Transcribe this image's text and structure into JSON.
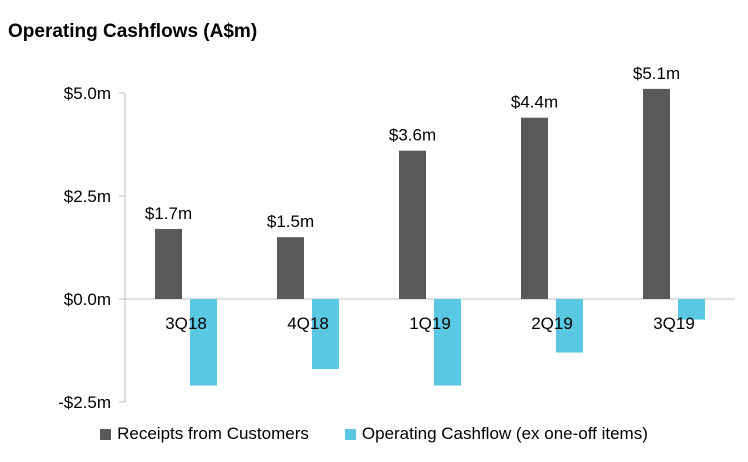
{
  "chart_data": {
    "type": "bar",
    "title": "Operating Cashflows (A$m)",
    "categories": [
      "3Q18",
      "4Q18",
      "1Q19",
      "2Q19",
      "3Q19"
    ],
    "series": [
      {
        "name": "Receipts from Customers",
        "color": "#595959",
        "values": [
          1.7,
          1.5,
          3.6,
          4.4,
          5.1
        ],
        "labels": [
          "$1.7m",
          "$1.5m",
          "$3.6m",
          "$4.4m",
          "$5.1m"
        ]
      },
      {
        "name": "Operating Cashflow (ex one-off items)",
        "color": "#5BC8E3",
        "values": [
          -2.1,
          -1.7,
          -2.1,
          -1.3,
          -0.5
        ]
      }
    ],
    "yticks": [
      5.0,
      2.5,
      0.0,
      -2.5
    ],
    "ytick_labels": [
      "$5.0m",
      "$2.5m",
      "$0.0m",
      "-$2.5m"
    ],
    "ylim": [
      -2.5,
      5.0
    ],
    "grid": false,
    "legend_position": "bottom"
  }
}
